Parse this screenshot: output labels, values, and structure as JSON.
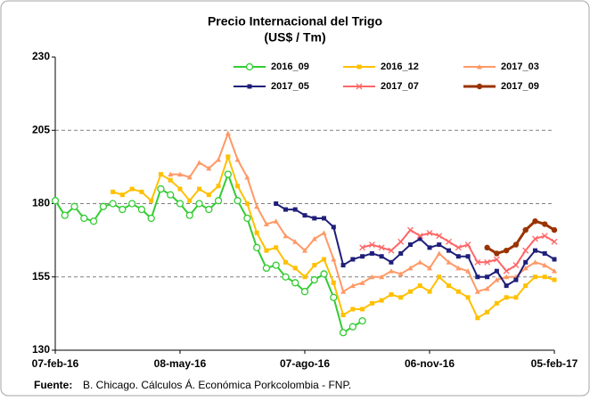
{
  "chart_data": {
    "type": "line",
    "title": "Precio Internacional del Trigo",
    "subtitle": "(US$ / Tm)",
    "categories": [
      "07-feb-16",
      null,
      null,
      null,
      null,
      null,
      null,
      null,
      null,
      null,
      null,
      null,
      null,
      "08-may-16",
      null,
      null,
      null,
      null,
      null,
      null,
      null,
      null,
      null,
      null,
      null,
      null,
      "07-ago-16",
      null,
      null,
      null,
      null,
      null,
      null,
      null,
      null,
      null,
      null,
      null,
      null,
      "06-nov-16",
      null,
      null,
      null,
      null,
      null,
      null,
      null,
      null,
      null,
      null,
      null,
      null,
      "05-feb-17"
    ],
    "ylim": [
      130,
      230
    ],
    "yticks": [
      130,
      155,
      180,
      205,
      230
    ],
    "grid": true,
    "series": [
      {
        "name": "2016_09",
        "color": "#33cc33",
        "marker": "circle-open",
        "values": [
          181,
          176,
          179,
          175,
          174,
          179,
          180,
          178,
          180,
          178,
          175,
          185,
          183,
          180,
          176,
          180,
          178,
          181,
          190,
          181,
          175,
          165,
          158,
          159,
          155,
          153,
          150,
          154,
          156,
          148,
          136,
          138,
          140,
          null,
          null,
          null,
          null,
          null,
          null,
          null,
          null,
          null,
          null,
          null,
          null,
          null,
          null,
          null,
          null,
          null,
          null,
          null,
          null
        ]
      },
      {
        "name": "2016_12",
        "color": "#ffc000",
        "marker": "square",
        "values": [
          null,
          null,
          null,
          null,
          null,
          null,
          184,
          183,
          185,
          184,
          181,
          190,
          188,
          185,
          181,
          185,
          183,
          186,
          196,
          186,
          180,
          170,
          164,
          165,
          160,
          158,
          155,
          159,
          161,
          153,
          142,
          144,
          144,
          146,
          147,
          149,
          148,
          150,
          152,
          150,
          155,
          152,
          150,
          148,
          141,
          143,
          146,
          148,
          148,
          152,
          155,
          155,
          154
        ]
      },
      {
        "name": "2017_03",
        "color": "#ff9966",
        "marker": "triangle",
        "values": [
          null,
          null,
          null,
          null,
          null,
          null,
          null,
          null,
          null,
          null,
          null,
          null,
          190,
          190,
          189,
          194,
          192,
          195,
          204,
          195,
          189,
          179,
          173,
          174,
          169,
          167,
          164,
          168,
          170,
          161,
          150,
          152,
          153,
          155,
          155,
          157,
          156,
          158,
          160,
          158,
          163,
          160,
          158,
          157,
          150,
          151,
          154,
          155,
          155,
          158,
          160,
          159,
          157
        ]
      },
      {
        "name": "2017_05",
        "color": "#1f1f7a",
        "marker": "square",
        "values": [
          null,
          null,
          null,
          null,
          null,
          null,
          null,
          null,
          null,
          null,
          null,
          null,
          null,
          null,
          null,
          null,
          null,
          null,
          null,
          null,
          null,
          null,
          null,
          180,
          178,
          178,
          176,
          175,
          175,
          172,
          159,
          161,
          162,
          163,
          162,
          160,
          163,
          166,
          168,
          165,
          166,
          164,
          162,
          162,
          155,
          155,
          157,
          152,
          154,
          160,
          164,
          163,
          161
        ]
      },
      {
        "name": "2017_07",
        "color": "#ff6666",
        "marker": "cross",
        "values": [
          null,
          null,
          null,
          null,
          null,
          null,
          null,
          null,
          null,
          null,
          null,
          null,
          null,
          null,
          null,
          null,
          null,
          null,
          null,
          null,
          null,
          null,
          null,
          null,
          null,
          null,
          null,
          null,
          null,
          null,
          null,
          null,
          165,
          166,
          165,
          164,
          167,
          171,
          169,
          170,
          169,
          167,
          165,
          166,
          160,
          160,
          161,
          157,
          159,
          164,
          168,
          169,
          167
        ]
      },
      {
        "name": "2017_09",
        "color": "#993300",
        "marker": "circle",
        "values": [
          null,
          null,
          null,
          null,
          null,
          null,
          null,
          null,
          null,
          null,
          null,
          null,
          null,
          null,
          null,
          null,
          null,
          null,
          null,
          null,
          null,
          null,
          null,
          null,
          null,
          null,
          null,
          null,
          null,
          null,
          null,
          null,
          null,
          null,
          null,
          null,
          null,
          null,
          null,
          null,
          null,
          null,
          null,
          null,
          null,
          165,
          163,
          164,
          166,
          171,
          174,
          173,
          171
        ]
      }
    ]
  },
  "footer": {
    "label": "Fuente:",
    "text": "B. Chicago. Cálculos Á. Económica Porkcolombia  - FNP."
  }
}
